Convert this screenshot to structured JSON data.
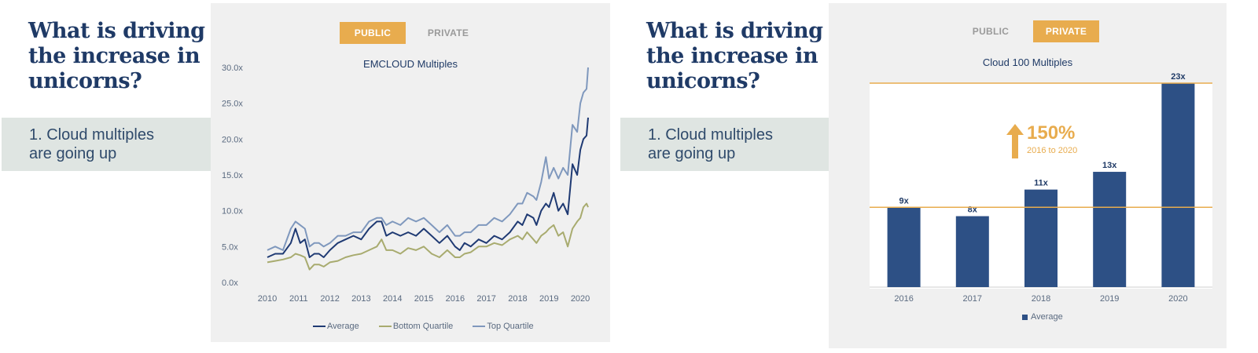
{
  "left_slide": {
    "heading": "What is driving the increase in unicorns?",
    "callout": "1. Cloud multiples\n   are going up",
    "toggle": {
      "public": "PUBLIC",
      "private": "PRIVATE",
      "active": "public"
    }
  },
  "right_slide": {
    "heading": "What is driving the increase in unicorns?",
    "callout": "1. Cloud multiples\n   are going up",
    "toggle": {
      "public": "PUBLIC",
      "private": "PRIVATE",
      "active": "private"
    },
    "growth": {
      "value": "150%",
      "label": "2016 to 2020"
    }
  },
  "colors": {
    "avg": "#1f3a73",
    "bottom": "#a8ab6f",
    "top": "#7f98bd",
    "bar": "#2d5085",
    "accent": "#e8ac4e"
  },
  "chart_data": [
    {
      "type": "line",
      "title": "EMCLOUD Multiples",
      "ylim": [
        0,
        30
      ],
      "yticks": [
        "0.0x",
        "5.0x",
        "10.0x",
        "15.0x",
        "20.0x",
        "25.0x",
        "30.0x"
      ],
      "xticks": [
        "2010",
        "2011",
        "2012",
        "2013",
        "2014",
        "2015",
        "2016",
        "2017",
        "2018",
        "2019",
        "2020"
      ],
      "xlim": [
        2010,
        2020.35
      ],
      "legend_position": "bottom",
      "series": [
        {
          "name": "Average",
          "x": [
            2010.0,
            2010.25,
            2010.5,
            2010.75,
            2010.9,
            2011.05,
            2011.2,
            2011.35,
            2011.5,
            2011.65,
            2011.8,
            2012.0,
            2012.25,
            2012.5,
            2012.75,
            2013.0,
            2013.25,
            2013.5,
            2013.65,
            2013.8,
            2014.0,
            2014.25,
            2014.5,
            2014.75,
            2015.0,
            2015.25,
            2015.5,
            2015.75,
            2016.0,
            2016.15,
            2016.3,
            2016.5,
            2016.75,
            2017.0,
            2017.25,
            2017.5,
            2017.75,
            2018.0,
            2018.15,
            2018.3,
            2018.5,
            2018.6,
            2018.75,
            2018.9,
            2019.0,
            2019.15,
            2019.3,
            2019.45,
            2019.6,
            2019.75,
            2019.9,
            2020.0,
            2020.1,
            2020.2,
            2020.25
          ],
          "y": [
            3.5,
            4.0,
            4.0,
            5.5,
            7.5,
            5.5,
            6.0,
            3.5,
            4.0,
            4.0,
            3.5,
            4.5,
            5.5,
            6.0,
            6.5,
            6.0,
            7.5,
            8.5,
            8.5,
            6.5,
            7.0,
            6.5,
            7.0,
            6.5,
            7.5,
            6.5,
            5.5,
            6.5,
            5.0,
            4.5,
            5.5,
            5.0,
            6.0,
            5.5,
            6.5,
            6.0,
            7.0,
            8.5,
            8.0,
            9.5,
            9.0,
            8.0,
            10.0,
            11.0,
            10.5,
            12.5,
            10.0,
            11.0,
            9.5,
            16.5,
            15.0,
            18.5,
            20.0,
            20.5,
            23.0
          ]
        },
        {
          "name": "Bottom Quartile",
          "x": [
            2010.0,
            2010.25,
            2010.5,
            2010.75,
            2010.9,
            2011.05,
            2011.2,
            2011.35,
            2011.5,
            2011.65,
            2011.8,
            2012.0,
            2012.25,
            2012.5,
            2012.75,
            2013.0,
            2013.25,
            2013.5,
            2013.65,
            2013.8,
            2014.0,
            2014.25,
            2014.5,
            2014.75,
            2015.0,
            2015.25,
            2015.5,
            2015.75,
            2016.0,
            2016.15,
            2016.3,
            2016.5,
            2016.75,
            2017.0,
            2017.25,
            2017.5,
            2017.75,
            2018.0,
            2018.15,
            2018.3,
            2018.5,
            2018.6,
            2018.75,
            2018.9,
            2019.0,
            2019.15,
            2019.3,
            2019.45,
            2019.6,
            2019.75,
            2019.9,
            2020.0,
            2020.1,
            2020.2,
            2020.25
          ],
          "y": [
            2.8,
            3.0,
            3.2,
            3.5,
            4.0,
            3.8,
            3.5,
            1.8,
            2.5,
            2.5,
            2.2,
            2.8,
            3.0,
            3.5,
            3.8,
            4.0,
            4.5,
            5.0,
            6.0,
            4.5,
            4.5,
            4.0,
            4.8,
            4.5,
            5.0,
            4.0,
            3.5,
            4.5,
            3.5,
            3.5,
            4.0,
            4.2,
            5.0,
            5.0,
            5.5,
            5.2,
            6.0,
            6.5,
            6.0,
            7.0,
            6.0,
            5.5,
            6.5,
            7.0,
            7.5,
            8.0,
            6.5,
            7.0,
            5.0,
            7.5,
            8.5,
            9.0,
            10.5,
            11.0,
            10.5
          ]
        },
        {
          "name": "Top Quartile",
          "x": [
            2010.0,
            2010.25,
            2010.5,
            2010.75,
            2010.9,
            2011.05,
            2011.2,
            2011.35,
            2011.5,
            2011.65,
            2011.8,
            2012.0,
            2012.25,
            2012.5,
            2012.75,
            2013.0,
            2013.25,
            2013.5,
            2013.65,
            2013.8,
            2014.0,
            2014.25,
            2014.5,
            2014.75,
            2015.0,
            2015.25,
            2015.5,
            2015.75,
            2016.0,
            2016.15,
            2016.3,
            2016.5,
            2016.75,
            2017.0,
            2017.25,
            2017.5,
            2017.75,
            2018.0,
            2018.15,
            2018.3,
            2018.5,
            2018.6,
            2018.75,
            2018.9,
            2019.0,
            2019.15,
            2019.3,
            2019.45,
            2019.6,
            2019.75,
            2019.9,
            2020.0,
            2020.1,
            2020.2,
            2020.25
          ],
          "y": [
            4.5,
            5.0,
            4.5,
            7.5,
            8.5,
            8.0,
            7.5,
            5.0,
            5.5,
            5.5,
            5.0,
            5.5,
            6.5,
            6.5,
            7.0,
            7.0,
            8.5,
            9.0,
            9.0,
            8.0,
            8.5,
            8.0,
            9.0,
            8.5,
            9.0,
            8.0,
            7.0,
            8.0,
            6.5,
            6.5,
            7.0,
            7.0,
            8.0,
            8.0,
            9.0,
            8.5,
            9.5,
            11.0,
            11.0,
            12.5,
            12.0,
            11.5,
            14.0,
            17.5,
            14.5,
            16.0,
            14.5,
            16.0,
            15.0,
            22.0,
            21.0,
            25.0,
            26.5,
            27.0,
            30.0
          ]
        }
      ]
    },
    {
      "type": "bar",
      "title": "Cloud 100 Multiples",
      "categories": [
        "2016",
        "2017",
        "2018",
        "2019",
        "2020"
      ],
      "series": [
        {
          "name": "Average",
          "values": [
            9,
            8,
            11,
            13,
            23
          ]
        }
      ],
      "data_labels": [
        "9x",
        "8x",
        "11x",
        "13x",
        "23x"
      ],
      "ylim": [
        0,
        23
      ],
      "reference_lines": [
        9,
        23
      ],
      "legend_position": "bottom"
    }
  ]
}
